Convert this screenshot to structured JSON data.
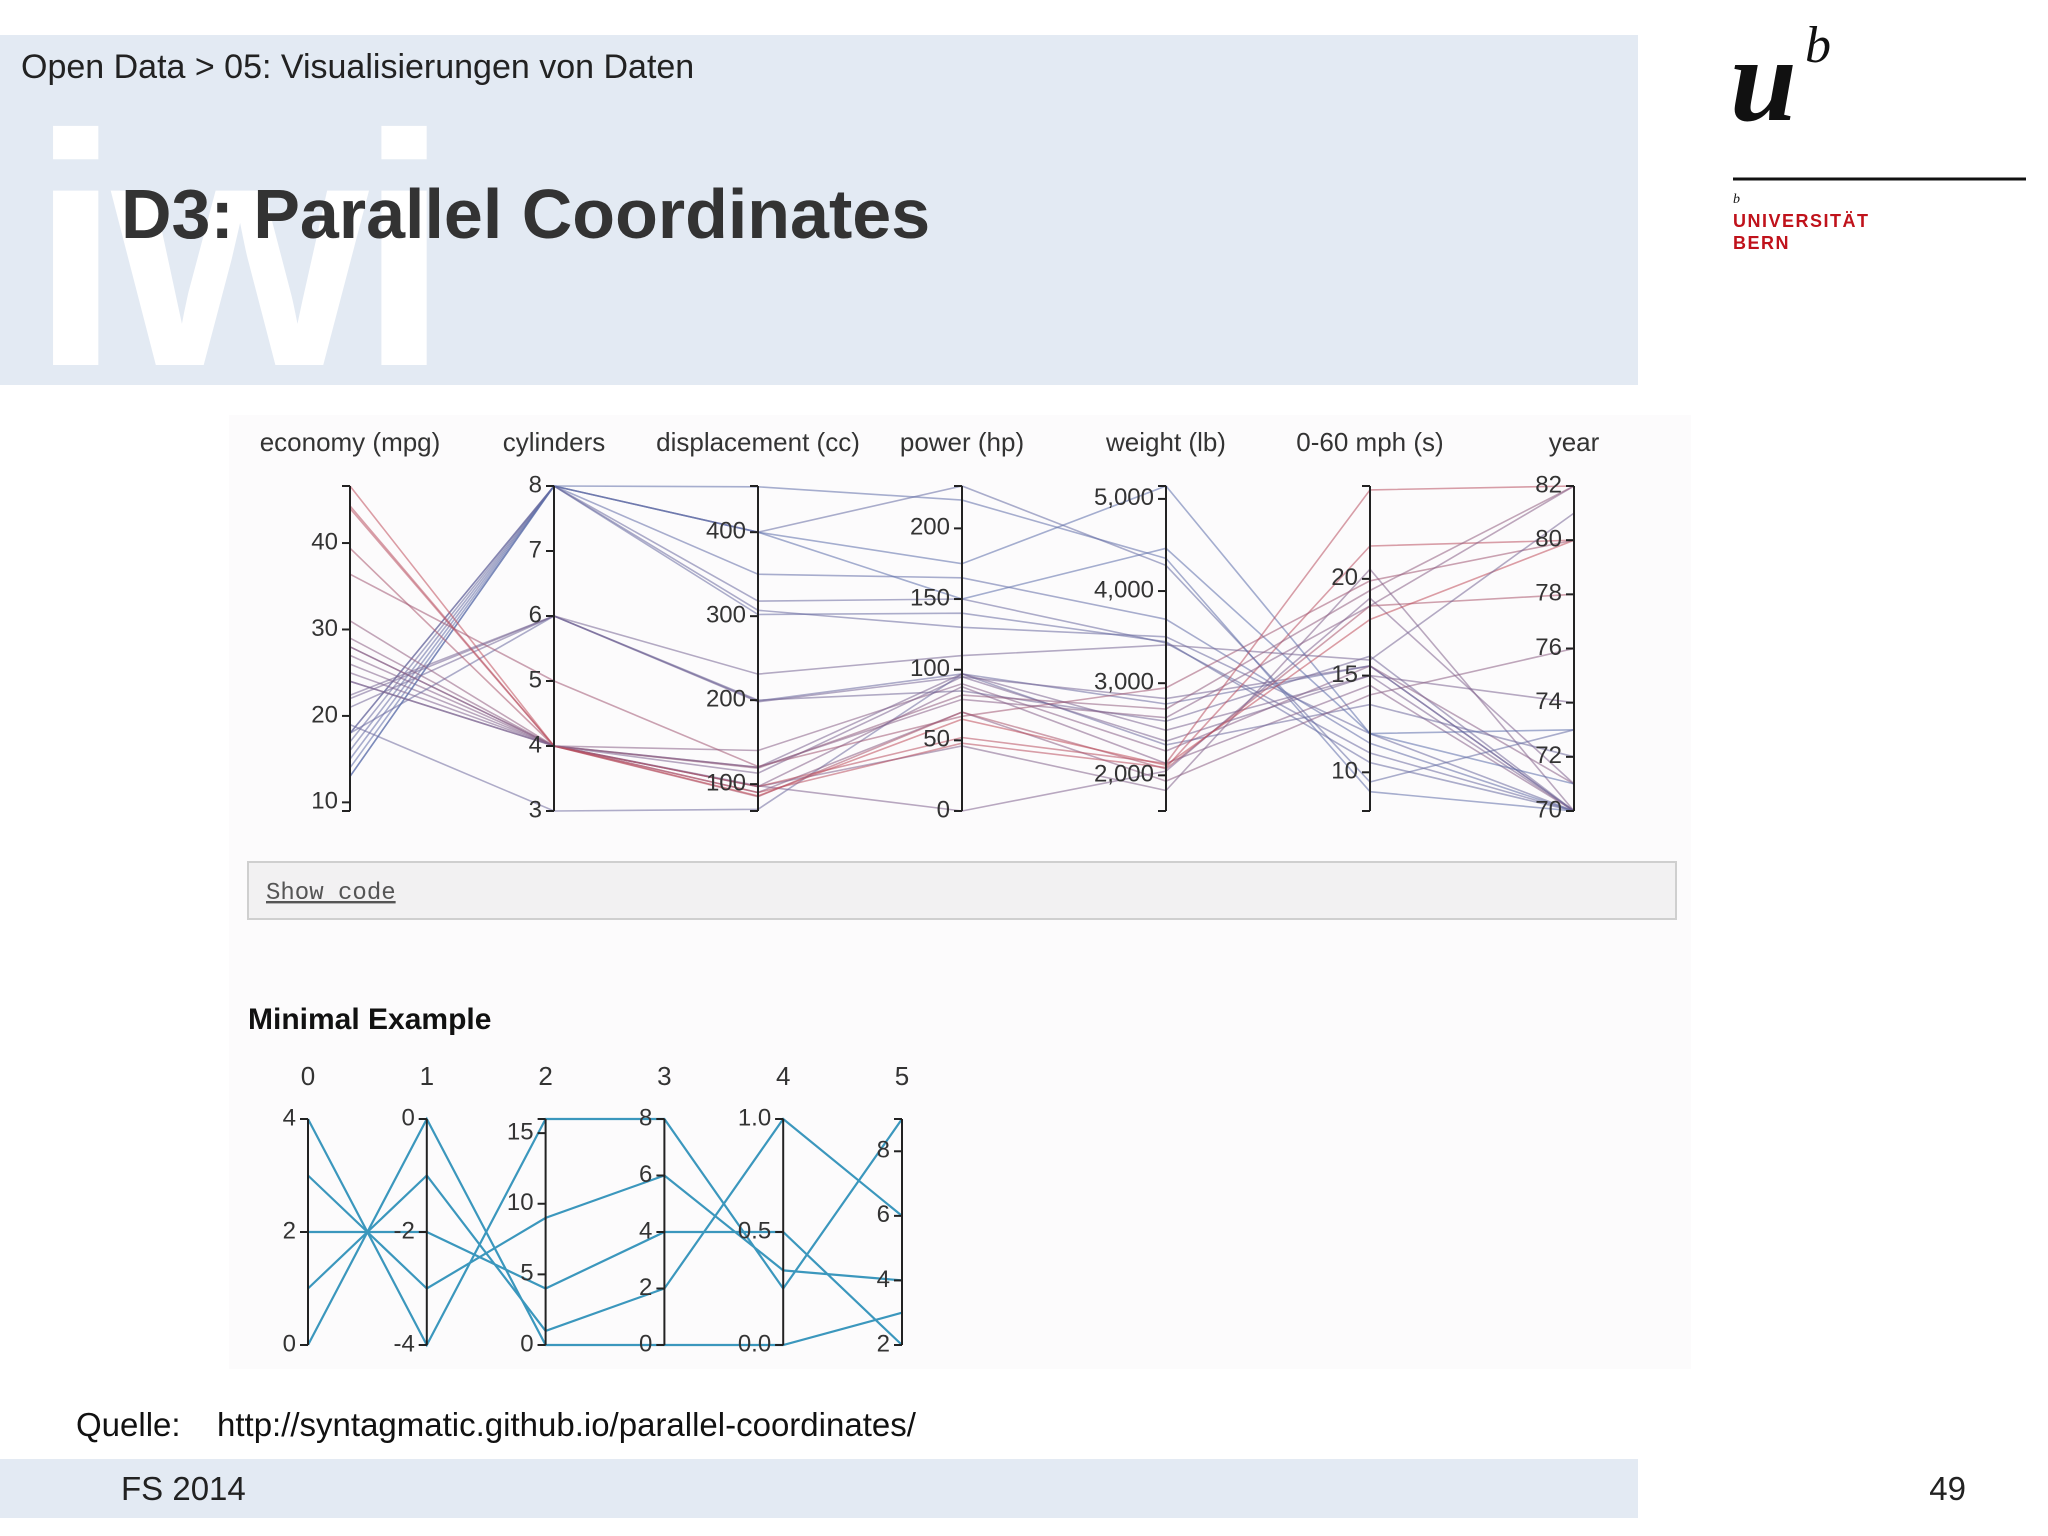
{
  "header": {
    "watermark": "iwi",
    "breadcrumb": "Open Data > 05: Visualisierungen von Daten",
    "title": "D3: Parallel Coordinates"
  },
  "logo": {
    "mark": "u",
    "superscript": "b",
    "small": "b",
    "line1": "UNIVERSITÄT",
    "line2": "BERN"
  },
  "chart_data": [
    {
      "type": "parallel",
      "dimensions": [
        {
          "label": "economy (mpg)",
          "lim": [
            9,
            46.6
          ],
          "ticks": [
            10,
            20,
            30,
            40
          ]
        },
        {
          "label": "cylinders",
          "lim": [
            3,
            8
          ],
          "ticks": [
            3,
            4,
            5,
            6,
            7,
            8
          ]
        },
        {
          "label": "displacement (cc)",
          "lim": [
            68,
            455
          ],
          "ticks": [
            100,
            200,
            300,
            400
          ]
        },
        {
          "label": "power (hp)",
          "lim": [
            0,
            230
          ],
          "ticks": [
            0,
            50,
            100,
            150,
            200
          ]
        },
        {
          "label": "weight (lb)",
          "lim": [
            1613,
            5140
          ],
          "ticks": [
            {
              "value": 2000,
              "label": "2,000"
            },
            {
              "value": 3000,
              "label": "3,000"
            },
            {
              "value": 4000,
              "label": "4,000"
            },
            {
              "value": 5000,
              "label": "5,000"
            }
          ]
        },
        {
          "label": "0-60 mph (s)",
          "lim": [
            8,
            24.8
          ],
          "ticks": [
            10,
            15,
            20
          ]
        },
        {
          "label": "year",
          "lim": [
            70,
            82
          ],
          "ticks": [
            70,
            72,
            74,
            76,
            78,
            80,
            82
          ]
        }
      ],
      "color_by": 0,
      "color_scale": [
        "#4f72b3",
        "#c04f5b"
      ],
      "series": [
        {
          "values": [
            18,
            8,
            307,
            130,
            3504,
            12,
            70
          ]
        },
        {
          "values": [
            15,
            8,
            350,
            165,
            3693,
            11.5,
            70
          ]
        },
        {
          "values": [
            18,
            8,
            318,
            150,
            3436,
            11,
            70
          ]
        },
        {
          "values": [
            17,
            8,
            302,
            140,
            3449,
            10.5,
            70
          ]
        },
        {
          "values": [
            14,
            8,
            454,
            220,
            4354,
            9,
            70
          ]
        },
        {
          "values": [
            24,
            4,
            113,
            95,
            2372,
            15,
            70
          ]
        },
        {
          "values": [
            27,
            4,
            97,
            88,
            2130,
            14.5,
            70
          ]
        },
        {
          "values": [
            26,
            4,
            97,
            46,
            1835,
            20.5,
            70
          ]
        },
        {
          "values": [
            18,
            6,
            199,
            97,
            2774,
            15.5,
            70
          ]
        },
        {
          "values": [
            21,
            6,
            200,
            85,
            2587,
            16,
            70
          ]
        },
        {
          "values": [
            22,
            6,
            198,
            95,
            2833,
            15.5,
            70
          ]
        },
        {
          "values": [
            28,
            4,
            140,
            90,
            2264,
            15.5,
            71
          ]
        },
        {
          "values": [
            25,
            4,
            98,
            0,
            2046,
            19,
            71
          ]
        },
        {
          "values": [
            13,
            8,
            400,
            175,
            5140,
            12,
            71
          ]
        },
        {
          "values": [
            19,
            3,
            70,
            97,
            2330,
            13.5,
            72
          ]
        },
        {
          "values": [
            13,
            8,
            400,
            150,
            4464,
            12,
            73
          ]
        },
        {
          "values": [
            16,
            8,
            400,
            230,
            4278,
            9.5,
            73
          ]
        },
        {
          "values": [
            24,
            4,
            120,
            97,
            2489,
            15,
            74
          ]
        },
        {
          "values": [
            29,
            4,
            90,
            70,
            1937,
            14,
            76
          ]
        },
        {
          "values": [
            39.4,
            4,
            85,
            70,
            2070,
            18.6,
            78
          ]
        },
        {
          "values": [
            46.6,
            4,
            86,
            65,
            2110,
            17.9,
            80
          ]
        },
        {
          "values": [
            44.3,
            4,
            90,
            48,
            2085,
            21.7,
            80
          ]
        },
        {
          "values": [
            36.4,
            5,
            121,
            67,
            2950,
            19.9,
            80
          ]
        },
        {
          "values": [
            22.4,
            6,
            231,
            110,
            3415,
            15.8,
            81
          ]
        },
        {
          "values": [
            28,
            4,
            120,
            79,
            2625,
            18.6,
            82
          ]
        },
        {
          "values": [
            31,
            4,
            119,
            82,
            2720,
            19.4,
            82
          ]
        },
        {
          "values": [
            44,
            4,
            97,
            52,
            2130,
            24.6,
            82
          ]
        }
      ]
    },
    {
      "type": "parallel",
      "title": "Minimal Example",
      "color": "#3b97bd",
      "dimensions": [
        {
          "label": "0",
          "lim": [
            0,
            4
          ],
          "ticks": [
            0,
            2,
            4
          ]
        },
        {
          "label": "1",
          "lim": [
            -4,
            0
          ],
          "ticks": [
            -4,
            -2,
            0
          ]
        },
        {
          "label": "2",
          "lim": [
            0,
            16
          ],
          "ticks": [
            0,
            5,
            10,
            15
          ]
        },
        {
          "label": "3",
          "lim": [
            0,
            8
          ],
          "ticks": [
            0,
            2,
            4,
            6,
            8
          ]
        },
        {
          "label": "4",
          "lim": [
            0,
            1
          ],
          "ticks": [
            {
              "value": 0,
              "label": "0.0"
            },
            0.5,
            {
              "value": 1,
              "label": "1.0"
            }
          ]
        },
        {
          "label": "5",
          "lim": [
            2,
            9
          ],
          "ticks": [
            2,
            4,
            6,
            8
          ]
        }
      ],
      "series": [
        {
          "values": [
            0,
            0,
            0,
            0,
            0,
            3
          ]
        },
        {
          "values": [
            1,
            -1,
            1,
            2,
            1,
            6
          ]
        },
        {
          "values": [
            2,
            -2,
            4,
            4,
            0.5,
            2
          ]
        },
        {
          "values": [
            3,
            -3,
            9,
            6,
            0.33,
            4
          ]
        },
        {
          "values": [
            4,
            -4,
            16,
            8,
            0.25,
            9
          ]
        }
      ]
    }
  ],
  "button": {
    "label": "Show code"
  },
  "source": {
    "label": "Quelle:",
    "url": "http://syntagmatic.github.io/parallel-coordinates/"
  },
  "footer": {
    "left": "FS 2014",
    "page": "49"
  }
}
